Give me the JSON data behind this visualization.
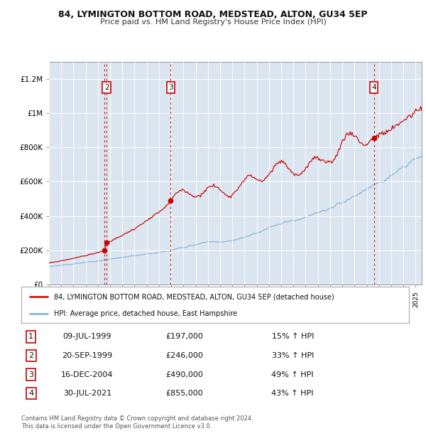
{
  "title1": "84, LYMINGTON BOTTOM ROAD, MEDSTEAD, ALTON, GU34 5EP",
  "title2": "Price paid vs. HM Land Registry's House Price Index (HPI)",
  "red_label": "84, LYMINGTON BOTTOM ROAD, MEDSTEAD, ALTON, GU34 5EP (detached house)",
  "blue_label": "HPI: Average price, detached house, East Hampshire",
  "footer1": "Contains HM Land Registry data © Crown copyright and database right 2024.",
  "footer2": "This data is licensed under the Open Government Licence v3.0.",
  "background_color": "#dce6f1",
  "red_color": "#cc0000",
  "blue_color": "#7bafd4",
  "ylim": [
    0,
    1300000
  ],
  "yticks": [
    0,
    200000,
    400000,
    600000,
    800000,
    1000000,
    1200000
  ],
  "ytick_labels": [
    "£0",
    "£200K",
    "£400K",
    "£600K",
    "£800K",
    "£1M",
    "£1.2M"
  ],
  "sale_events": [
    {
      "num": 1,
      "date_str": "09-JUL-1999",
      "price": 197000,
      "pct": "15%",
      "x_year": 1999.52
    },
    {
      "num": 2,
      "date_str": "20-SEP-1999",
      "price": 246000,
      "pct": "33%",
      "x_year": 1999.72
    },
    {
      "num": 3,
      "date_str": "16-DEC-2004",
      "price": 490000,
      "pct": "49%",
      "x_year": 2004.96
    },
    {
      "num": 4,
      "date_str": "30-JUL-2021",
      "price": 855000,
      "pct": "43%",
      "x_year": 2021.58
    }
  ],
  "xmin": 1995.0,
  "xmax": 2025.5
}
